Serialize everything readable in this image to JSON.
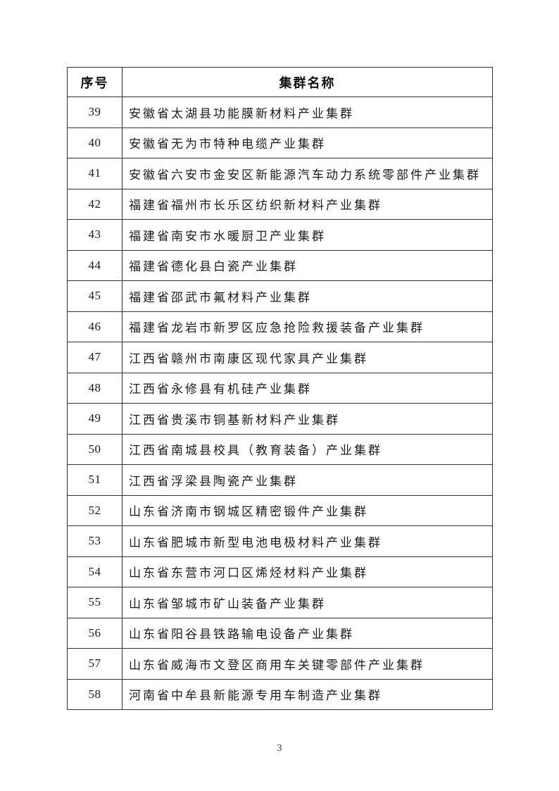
{
  "table": {
    "header": {
      "col_num": "序号",
      "col_name": "集群名称"
    },
    "rows": [
      {
        "num": "39",
        "name": "安徽省太湖县功能膜新材料产业集群"
      },
      {
        "num": "40",
        "name": "安徽省无为市特种电缆产业集群"
      },
      {
        "num": "41",
        "name": "安徽省六安市金安区新能源汽车动力系统零部件产业集群"
      },
      {
        "num": "42",
        "name": "福建省福州市长乐区纺织新材料产业集群"
      },
      {
        "num": "43",
        "name": "福建省南安市水暖厨卫产业集群"
      },
      {
        "num": "44",
        "name": "福建省德化县白瓷产业集群"
      },
      {
        "num": "45",
        "name": "福建省邵武市氟材料产业集群"
      },
      {
        "num": "46",
        "name": "福建省龙岩市新罗区应急抢险救援装备产业集群"
      },
      {
        "num": "47",
        "name": "江西省赣州市南康区现代家具产业集群"
      },
      {
        "num": "48",
        "name": "江西省永修县有机硅产业集群"
      },
      {
        "num": "49",
        "name": "江西省贵溪市铜基新材料产业集群"
      },
      {
        "num": "50",
        "name": "江西省南城县校具（教育装备）产业集群"
      },
      {
        "num": "51",
        "name": "江西省浮梁县陶瓷产业集群"
      },
      {
        "num": "52",
        "name": "山东省济南市钢城区精密锻件产业集群"
      },
      {
        "num": "53",
        "name": "山东省肥城市新型电池电极材料产业集群"
      },
      {
        "num": "54",
        "name": "山东省东营市河口区烯烃材料产业集群"
      },
      {
        "num": "55",
        "name": "山东省邹城市矿山装备产业集群"
      },
      {
        "num": "56",
        "name": "山东省阳谷县铁路输电设备产业集群"
      },
      {
        "num": "57",
        "name": "山东省威海市文登区商用车关键零部件产业集群"
      },
      {
        "num": "58",
        "name": "河南省中牟县新能源专用车制造产业集群"
      }
    ]
  },
  "footer": {
    "page_number": "3"
  },
  "colors": {
    "text": "#1a1a1a",
    "border": "#333333",
    "background": "#ffffff"
  }
}
